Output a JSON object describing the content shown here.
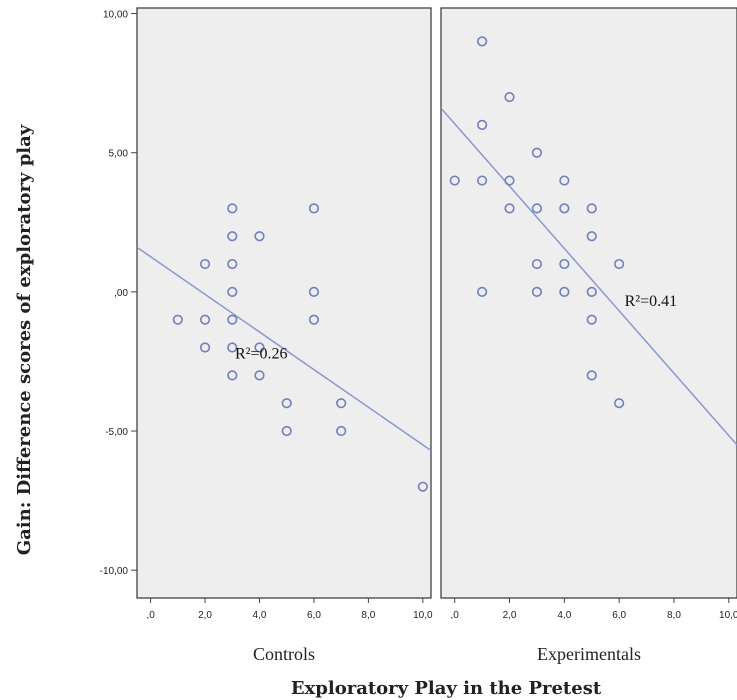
{
  "chart_data": {
    "type": "scatter",
    "xlabel": "Exploratory Play in the Pretest",
    "ylabel": "Gain: Difference  scores of exploratory play",
    "ylim": [
      -11,
      10.2
    ],
    "xlim": [
      -0.5,
      10.3
    ],
    "y_ticks": [
      {
        "v": 10,
        "label": "10,00"
      },
      {
        "v": 5,
        "label": "5,00"
      },
      {
        "v": 0,
        "label": ",00"
      },
      {
        "v": -5,
        "label": "-5,00"
      },
      {
        "v": -10,
        "label": "-10,00"
      }
    ],
    "x_ticks": [
      {
        "v": 0,
        "label": ",0"
      },
      {
        "v": 2,
        "label": "2,0"
      },
      {
        "v": 4,
        "label": "4,0"
      },
      {
        "v": 6,
        "label": "6,0"
      },
      {
        "v": 8,
        "label": "8,0"
      },
      {
        "v": 10,
        "label": "10,0"
      }
    ],
    "grid": false,
    "marker_color": "#6f7fc0",
    "line_color": "#8797d2",
    "panel_background": "#eeeeee",
    "panels": [
      {
        "label": "Controls",
        "annotation": "R²=0.26",
        "annotation_x": 3.1,
        "annotation_y": -2.4,
        "fit_line": {
          "x": [
            -0.5,
            10.3
          ],
          "y": [
            1.6,
            -5.7
          ]
        },
        "points": [
          {
            "x": 1,
            "y": -1
          },
          {
            "x": 2,
            "y": 1
          },
          {
            "x": 2,
            "y": -1
          },
          {
            "x": 2,
            "y": -2
          },
          {
            "x": 3,
            "y": 3
          },
          {
            "x": 3,
            "y": 2
          },
          {
            "x": 3,
            "y": 1
          },
          {
            "x": 3,
            "y": 0
          },
          {
            "x": 3,
            "y": -1
          },
          {
            "x": 3,
            "y": -2
          },
          {
            "x": 3,
            "y": -3
          },
          {
            "x": 4,
            "y": 2
          },
          {
            "x": 4,
            "y": -2
          },
          {
            "x": 4,
            "y": -3
          },
          {
            "x": 5,
            "y": -4
          },
          {
            "x": 5,
            "y": -5
          },
          {
            "x": 6,
            "y": 3
          },
          {
            "x": 6,
            "y": 0
          },
          {
            "x": 6,
            "y": -1
          },
          {
            "x": 7,
            "y": -4
          },
          {
            "x": 7,
            "y": -5
          },
          {
            "x": 10,
            "y": -7
          }
        ]
      },
      {
        "label": "Experimentals",
        "annotation": "R²=0.41",
        "annotation_x": 6.2,
        "annotation_y": -0.5,
        "fit_line": {
          "x": [
            -0.5,
            10.3
          ],
          "y": [
            6.6,
            -5.5
          ]
        },
        "points": [
          {
            "x": 0,
            "y": 4
          },
          {
            "x": 1,
            "y": 9
          },
          {
            "x": 1,
            "y": 6
          },
          {
            "x": 1,
            "y": 4
          },
          {
            "x": 1,
            "y": 0
          },
          {
            "x": 2,
            "y": 7
          },
          {
            "x": 2,
            "y": 4
          },
          {
            "x": 2,
            "y": 3
          },
          {
            "x": 3,
            "y": 5
          },
          {
            "x": 3,
            "y": 3
          },
          {
            "x": 3,
            "y": 1
          },
          {
            "x": 3,
            "y": 0
          },
          {
            "x": 4,
            "y": 4
          },
          {
            "x": 4,
            "y": 3
          },
          {
            "x": 4,
            "y": 1
          },
          {
            "x": 4,
            "y": 0
          },
          {
            "x": 5,
            "y": 3
          },
          {
            "x": 5,
            "y": 2
          },
          {
            "x": 5,
            "y": 0
          },
          {
            "x": 5,
            "y": -1
          },
          {
            "x": 5,
            "y": -3
          },
          {
            "x": 6,
            "y": 1
          },
          {
            "x": 6,
            "y": -4
          }
        ]
      }
    ]
  }
}
